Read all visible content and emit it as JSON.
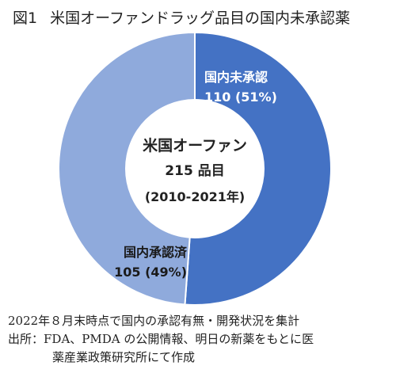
{
  "figure": {
    "label": "図1",
    "title": "米国オーファンドラッグ品目の国内未承認薬"
  },
  "chart_data": {
    "type": "pie",
    "style": "donut",
    "total": 215,
    "center_text": [
      "米国オーファン",
      "215 品目",
      "(2010-2021年)"
    ],
    "slices": [
      {
        "label": "国内未承認",
        "value": 110,
        "percent": "51%",
        "display": "110 (51%)",
        "color": "#4472c4"
      },
      {
        "label": "国内承認済",
        "value": 105,
        "percent": "49%",
        "display": "105 (49%)",
        "color": "#8faadc"
      }
    ]
  },
  "notes": {
    "line1": "2022年８月末時点で国内の承認有無・開発状況を集計",
    "source_prefix": "出所：",
    "source_line1": "FDA、PMDA の公開情報、明日の新薬をもとに医",
    "source_line2": "薬産業政策研究所にて作成"
  }
}
